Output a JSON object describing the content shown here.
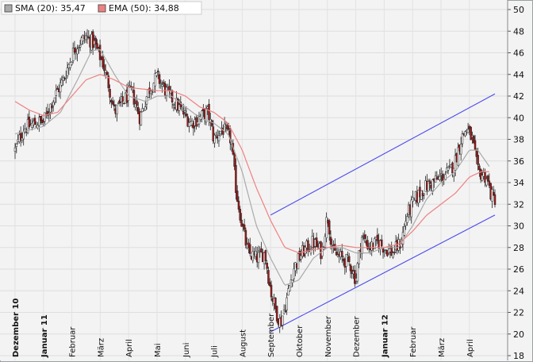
{
  "chart_data": {
    "type": "candlestick",
    "legend": [
      {
        "label": "SMA (20): 35,47",
        "color": "#aaaaaa"
      },
      {
        "label": "EMA (50): 34,88",
        "color": "#f08080"
      }
    ],
    "ylim": [
      18,
      50
    ],
    "y_ticks": [
      18,
      20,
      22,
      24,
      26,
      28,
      30,
      32,
      34,
      36,
      38,
      40,
      42,
      44,
      46,
      48,
      50
    ],
    "x_ticks": [
      {
        "label": "Dezember 10",
        "bold": true
      },
      {
        "label": "Januar 11",
        "bold": true
      },
      {
        "label": "Februar",
        "bold": false
      },
      {
        "label": "März",
        "bold": false
      },
      {
        "label": "April",
        "bold": false
      },
      {
        "label": "Mai",
        "bold": false
      },
      {
        "label": "Juni",
        "bold": false
      },
      {
        "label": "Juli",
        "bold": false
      },
      {
        "label": "August",
        "bold": false
      },
      {
        "label": "September",
        "bold": false
      },
      {
        "label": "Oktober",
        "bold": false
      },
      {
        "label": "November",
        "bold": false
      },
      {
        "label": "Dezember",
        "bold": false
      },
      {
        "label": "Januar 12",
        "bold": true
      },
      {
        "label": "Februar",
        "bold": false
      },
      {
        "label": "März",
        "bold": false
      },
      {
        "label": "April",
        "bold": false
      }
    ],
    "x_range": [
      0,
      16.9
    ],
    "close_anchors": [
      [
        0.0,
        37.0
      ],
      [
        0.3,
        39.0
      ],
      [
        0.8,
        39.6
      ],
      [
        1.0,
        39.6
      ],
      [
        1.3,
        41.5
      ],
      [
        1.7,
        43.5
      ],
      [
        2.1,
        46.5
      ],
      [
        2.5,
        47.5
      ],
      [
        2.8,
        46.8
      ],
      [
        3.1,
        45.0
      ],
      [
        3.3,
        43.0
      ],
      [
        3.5,
        40.5
      ],
      [
        3.8,
        41.5
      ],
      [
        4.1,
        42.5
      ],
      [
        4.4,
        40.0
      ],
      [
        4.7,
        42.5
      ],
      [
        5.0,
        43.8
      ],
      [
        5.3,
        42.5
      ],
      [
        5.6,
        41.5
      ],
      [
        5.9,
        40.5
      ],
      [
        6.2,
        39.5
      ],
      [
        6.5,
        40.0
      ],
      [
        6.8,
        40.5
      ],
      [
        7.0,
        38.0
      ],
      [
        7.3,
        39.0
      ],
      [
        7.6,
        38.0
      ],
      [
        7.8,
        33.0
      ],
      [
        8.0,
        30.0
      ],
      [
        8.2,
        27.5
      ],
      [
        8.5,
        27.0
      ],
      [
        8.8,
        27.5
      ],
      [
        9.0,
        24.0
      ],
      [
        9.2,
        22.0
      ],
      [
        9.35,
        21.0
      ],
      [
        9.55,
        23.0
      ],
      [
        9.8,
        26.0
      ],
      [
        10.1,
        27.5
      ],
      [
        10.5,
        28.5
      ],
      [
        10.8,
        27.5
      ],
      [
        11.0,
        31.0
      ],
      [
        11.2,
        27.5
      ],
      [
        11.5,
        27.0
      ],
      [
        11.8,
        26.5
      ],
      [
        12.0,
        25.0
      ],
      [
        12.2,
        29.0
      ],
      [
        12.5,
        28.0
      ],
      [
        12.8,
        28.5
      ],
      [
        13.0,
        28.0
      ],
      [
        13.3,
        27.5
      ],
      [
        13.6,
        28.5
      ],
      [
        13.8,
        31.0
      ],
      [
        14.1,
        32.5
      ],
      [
        14.4,
        33.5
      ],
      [
        14.7,
        34.0
      ],
      [
        15.0,
        34.5
      ],
      [
        15.3,
        35.0
      ],
      [
        15.5,
        36.0
      ],
      [
        15.7,
        38.0
      ],
      [
        15.9,
        39.0
      ],
      [
        16.1,
        38.0
      ],
      [
        16.3,
        35.0
      ],
      [
        16.6,
        34.5
      ],
      [
        16.75,
        33.0
      ],
      [
        16.85,
        32.5
      ]
    ],
    "sma_anchors": [
      [
        0.0,
        38.5
      ],
      [
        1.0,
        39.2
      ],
      [
        1.6,
        40.5
      ],
      [
        2.2,
        43.5
      ],
      [
        2.7,
        46.2
      ],
      [
        3.0,
        46.3
      ],
      [
        3.5,
        44.0
      ],
      [
        4.0,
        42.0
      ],
      [
        4.6,
        41.5
      ],
      [
        5.0,
        42.0
      ],
      [
        5.5,
        42.0
      ],
      [
        6.0,
        41.0
      ],
      [
        6.5,
        40.0
      ],
      [
        7.0,
        39.5
      ],
      [
        7.5,
        38.5
      ],
      [
        8.0,
        35.0
      ],
      [
        8.5,
        30.0
      ],
      [
        9.0,
        27.0
      ],
      [
        9.5,
        24.5
      ],
      [
        10.0,
        25.0
      ],
      [
        10.5,
        27.0
      ],
      [
        11.0,
        28.0
      ],
      [
        11.5,
        28.0
      ],
      [
        12.0,
        27.5
      ],
      [
        12.5,
        27.5
      ],
      [
        13.0,
        28.0
      ],
      [
        13.5,
        28.0
      ],
      [
        14.0,
        30.0
      ],
      [
        14.5,
        32.5
      ],
      [
        15.0,
        34.0
      ],
      [
        15.5,
        35.0
      ],
      [
        16.0,
        37.0
      ],
      [
        16.3,
        37.0
      ],
      [
        16.7,
        35.5
      ]
    ],
    "ema_anchors": [
      [
        0.0,
        41.5
      ],
      [
        0.5,
        40.7
      ],
      [
        1.0,
        40.2
      ],
      [
        1.5,
        40.5
      ],
      [
        2.0,
        42.0
      ],
      [
        2.5,
        43.5
      ],
      [
        3.0,
        44.0
      ],
      [
        3.5,
        43.5
      ],
      [
        4.0,
        42.8
      ],
      [
        5.0,
        42.5
      ],
      [
        5.5,
        42.5
      ],
      [
        6.0,
        42.0
      ],
      [
        6.5,
        41.0
      ],
      [
        7.0,
        40.5
      ],
      [
        7.5,
        39.5
      ],
      [
        8.0,
        37.0
      ],
      [
        8.5,
        33.5
      ],
      [
        9.0,
        30.5
      ],
      [
        9.5,
        28.0
      ],
      [
        10.0,
        27.5
      ],
      [
        10.5,
        27.8
      ],
      [
        11.0,
        28.0
      ],
      [
        11.5,
        28.2
      ],
      [
        12.0,
        28.0
      ],
      [
        12.5,
        28.0
      ],
      [
        13.0,
        28.0
      ],
      [
        13.5,
        28.3
      ],
      [
        14.0,
        29.5
      ],
      [
        14.5,
        31.0
      ],
      [
        15.0,
        32.0
      ],
      [
        15.5,
        33.0
      ],
      [
        16.0,
        34.5
      ],
      [
        16.4,
        35.0
      ],
      [
        16.7,
        35.0
      ]
    ],
    "trend_channel": {
      "upper": [
        [
          9.0,
          31.0
        ],
        [
          16.9,
          42.2
        ]
      ],
      "lower": [
        [
          9.0,
          20.2
        ],
        [
          16.9,
          31.0
        ]
      ],
      "color": "#4a4af0"
    },
    "grid": true,
    "legend_position": "top-left",
    "candle_colors": {
      "up": "#ffffff",
      "down": "#a31818",
      "wick": "#222222"
    }
  }
}
